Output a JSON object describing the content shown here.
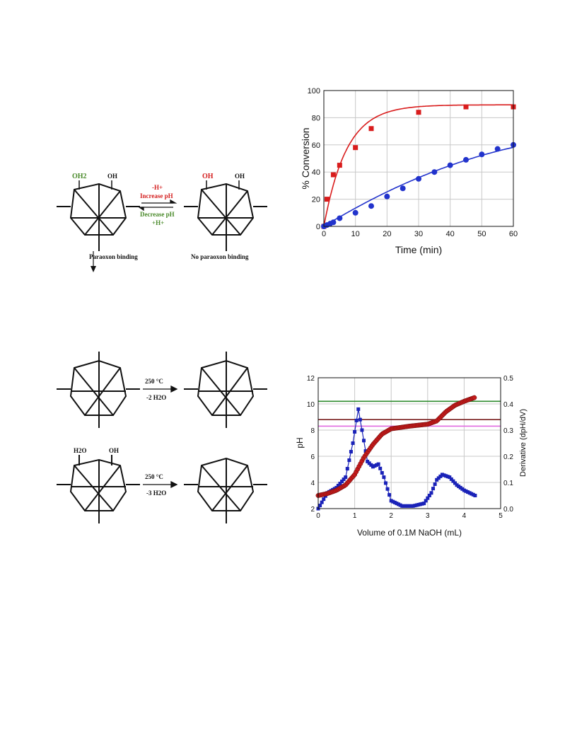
{
  "scheme_top": {
    "left_oh2": "OH2",
    "left_oh": "OH",
    "right_oh_minus": "OH",
    "right_oh": "OH",
    "arrow_top_1": "-H+",
    "arrow_top_2": "Increase pH",
    "arrow_bottom_1": "Decrease pH",
    "arrow_bottom_2": "+H+",
    "left_caption": "Paraoxon binding",
    "right_caption": "No paraoxon binding",
    "color_acid": "#d42020",
    "color_base": "#4a8a2a"
  },
  "scheme_mid": {
    "condition": "250 °C",
    "loss": "-2 H2O"
  },
  "scheme_bottom": {
    "h2o": "H2O",
    "oh": "OH",
    "condition": "250 °C",
    "loss": "-3 H2O"
  },
  "chart_data": [
    {
      "type": "scatter",
      "title": "",
      "xlabel": "Time (min)",
      "ylabel": "% Conversion",
      "xlim": [
        0,
        60
      ],
      "ylim": [
        0,
        100
      ],
      "xticks": [
        0,
        10,
        20,
        30,
        40,
        50,
        60
      ],
      "yticks": [
        0,
        20,
        40,
        60,
        80,
        100
      ],
      "grid": true,
      "series": [
        {
          "marker": "square",
          "color": "#d91c1c",
          "x": [
            0,
            1,
            3,
            5,
            10,
            15,
            30,
            45,
            60
          ],
          "y": [
            0,
            20,
            38,
            45,
            58,
            72,
            84,
            88,
            88
          ],
          "fit": "rise-exponential"
        },
        {
          "marker": "circle",
          "color": "#2233cc",
          "x": [
            0,
            1,
            2,
            3,
            5,
            10,
            15,
            20,
            25,
            30,
            35,
            40,
            45,
            50,
            55,
            60
          ],
          "y": [
            0,
            1,
            2,
            3,
            6,
            10,
            15,
            22,
            28,
            35,
            40,
            45,
            49,
            53,
            57,
            60
          ],
          "fit": "linear-curve"
        }
      ]
    },
    {
      "type": "scatter",
      "title": "",
      "xlabel": "Volume of 0.1M NaOH (mL)",
      "ylabel": "pH",
      "y2label": "Derivative (dpH/dV)",
      "xlim": [
        0,
        5
      ],
      "ylim": [
        2,
        12
      ],
      "y2lim": [
        0,
        0.5
      ],
      "xticks": [
        0,
        1,
        2,
        3,
        4,
        5
      ],
      "yticks": [
        2,
        4,
        6,
        8,
        10,
        12
      ],
      "y2ticks": [
        "0.0",
        "0.1",
        "0.2",
        "0.3",
        "0.4",
        "0.5"
      ],
      "grid": true,
      "hlines": [
        {
          "y": 10.2,
          "color": "#2e8b2e"
        },
        {
          "y": 8.8,
          "color": "#7a1f1f"
        },
        {
          "y": 8.3,
          "color": "#e06ce0"
        }
      ],
      "series": [
        {
          "axis": "left",
          "marker": "circle",
          "color": "#c41a1a",
          "x": [
            0,
            0.25,
            0.5,
            0.75,
            1.0,
            1.25,
            1.5,
            1.75,
            2.0,
            2.5,
            3.0,
            3.25,
            3.5,
            3.75,
            4.0,
            4.3
          ],
          "y": [
            3.0,
            3.15,
            3.4,
            3.8,
            4.6,
            5.9,
            6.9,
            7.7,
            8.1,
            8.3,
            8.45,
            8.7,
            9.4,
            9.9,
            10.2,
            10.5
          ]
        },
        {
          "axis": "right",
          "marker": "square",
          "color": "#1a22b8",
          "x": [
            0,
            0.25,
            0.5,
            0.75,
            0.95,
            1.1,
            1.2,
            1.35,
            1.5,
            1.65,
            1.8,
            2.0,
            2.3,
            2.6,
            2.9,
            3.1,
            3.25,
            3.4,
            3.6,
            3.8,
            4.0,
            4.3
          ],
          "y": [
            0.0,
            0.06,
            0.08,
            0.12,
            0.25,
            0.38,
            0.3,
            0.18,
            0.16,
            0.17,
            0.12,
            0.03,
            0.01,
            0.01,
            0.02,
            0.06,
            0.11,
            0.13,
            0.12,
            0.09,
            0.07,
            0.05
          ]
        }
      ]
    }
  ]
}
